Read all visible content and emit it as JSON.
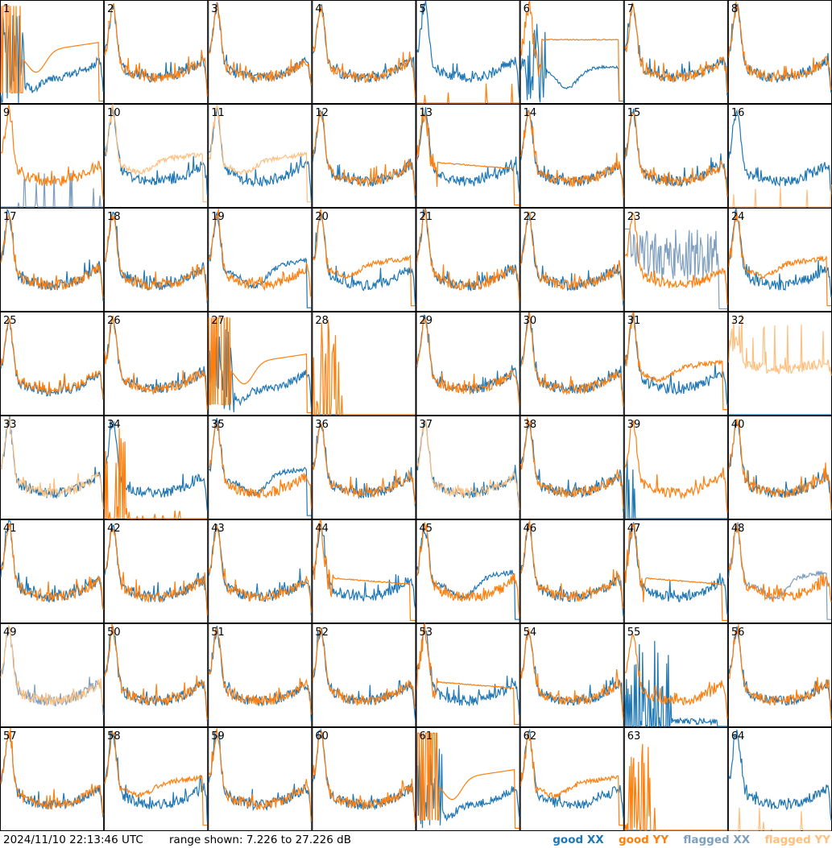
{
  "chart_data": {
    "type": "line",
    "layout": "small-multiples 8x8",
    "panel_labels": [
      "1",
      "2",
      "3",
      "4",
      "5",
      "6",
      "7",
      "8",
      "9",
      "10",
      "11",
      "12",
      "13",
      "14",
      "15",
      "16",
      "17",
      "18",
      "19",
      "20",
      "21",
      "22",
      "23",
      "24",
      "25",
      "26",
      "27",
      "28",
      "29",
      "30",
      "31",
      "32",
      "33",
      "34",
      "35",
      "36",
      "37",
      "38",
      "39",
      "40",
      "41",
      "42",
      "43",
      "44",
      "45",
      "46",
      "47",
      "48",
      "49",
      "50",
      "51",
      "52",
      "53",
      "54",
      "55",
      "56",
      "57",
      "58",
      "59",
      "60",
      "61",
      "62",
      "63",
      "64"
    ],
    "ylim": [
      7.226,
      27.226
    ],
    "grid": false,
    "legend_placement": "bottom-right",
    "legend": [
      {
        "label": "good XX",
        "color": "#1f77b4"
      },
      {
        "label": "good YY",
        "color": "#ff7f0e"
      },
      {
        "label": "flagged XX",
        "color": "#7f9fbf"
      },
      {
        "label": "flagged YY",
        "color": "#ffbf7f"
      }
    ],
    "panels": {
      "1": {
        "xx": "good",
        "yy": "good",
        "shape": "drop"
      },
      "5": {
        "xx": "good",
        "yy": "good",
        "shape": "xx_only"
      },
      "6": {
        "xx": "good",
        "yy": "good",
        "shape": "drop_yy_flat"
      },
      "9": {
        "xx": "flagged",
        "yy": "good",
        "shape": "xx_spikes"
      },
      "10": {
        "xx": "good",
        "yy": "flagged",
        "shape": "yy_low"
      },
      "11": {
        "xx": "good",
        "yy": "flagged",
        "shape": "yy_low"
      },
      "13": {
        "xx": "good",
        "yy": "good",
        "shape": "yy_decay"
      },
      "16": {
        "xx": "good",
        "yy": "flagged",
        "shape": "xx_only"
      },
      "19": {
        "xx": "good",
        "yy": "good",
        "shape": "xx_low"
      },
      "20": {
        "xx": "good",
        "yy": "good",
        "shape": "yy_low"
      },
      "23": {
        "xx": "flagged",
        "yy": "good",
        "shape": "xx_noise"
      },
      "24": {
        "xx": "good",
        "yy": "good",
        "shape": "yy_low"
      },
      "25": {
        "xx": "good",
        "yy": "good",
        "shape": "yy_only"
      },
      "27": {
        "xx": "good",
        "yy": "good",
        "shape": "drop"
      },
      "28": {
        "xx": "good",
        "yy": "good",
        "shape": "dead"
      },
      "31": {
        "xx": "good",
        "yy": "good",
        "shape": "yy_low"
      },
      "32": {
        "xx": "good",
        "yy": "flagged",
        "shape": "yy_noise"
      },
      "33": {
        "xx": "good",
        "yy": "flagged",
        "shape": "normal"
      },
      "34": {
        "xx": "good",
        "yy": "good",
        "shape": "yy_dead"
      },
      "35": {
        "xx": "good",
        "yy": "good",
        "shape": "xx_low"
      },
      "37": {
        "xx": "good",
        "yy": "flagged",
        "shape": "normal"
      },
      "39": {
        "xx": "good",
        "yy": "good",
        "shape": "yy_only_xx_spike"
      },
      "44": {
        "xx": "good",
        "yy": "good",
        "shape": "yy_decay"
      },
      "45": {
        "xx": "good",
        "yy": "good",
        "shape": "xx_low"
      },
      "47": {
        "xx": "good",
        "yy": "good",
        "shape": "yy_decay"
      },
      "48": {
        "xx": "flagged",
        "yy": "good",
        "shape": "xx_low"
      },
      "49": {
        "xx": "flagged",
        "yy": "flagged",
        "shape": "normal"
      },
      "53": {
        "xx": "good",
        "yy": "good",
        "shape": "yy_decay"
      },
      "55": {
        "xx": "good",
        "yy": "good",
        "shape": "xx_dead"
      },
      "58": {
        "xx": "good",
        "yy": "good",
        "shape": "yy_low"
      },
      "61": {
        "xx": "good",
        "yy": "good",
        "shape": "drop"
      },
      "62": {
        "xx": "good",
        "yy": "good",
        "shape": "yy_low"
      },
      "63": {
        "xx": "good",
        "yy": "good",
        "shape": "dead"
      },
      "64": {
        "xx": "good",
        "yy": "flagged",
        "shape": "xx_only"
      }
    }
  },
  "footer": {
    "timestamp": "2024/11/10 22:13:46 UTC",
    "range_text": "range shown: 7.226 to 27.226 dB"
  }
}
